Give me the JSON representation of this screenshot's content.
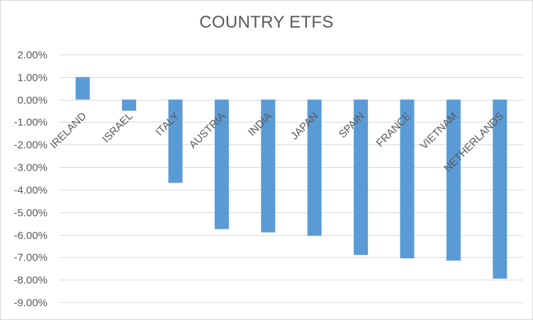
{
  "chart_data": {
    "type": "bar",
    "title": "COUNTRY ETFS",
    "xlabel": "",
    "ylabel": "",
    "ylim": [
      -0.09,
      0.02
    ],
    "yticks": [
      0.02,
      0.01,
      0.0,
      -0.01,
      -0.02,
      -0.03,
      -0.04,
      -0.05,
      -0.06,
      -0.07,
      -0.08,
      -0.09
    ],
    "ytick_labels": [
      "2.00%",
      "1.00%",
      "0.00%",
      "-1.00%",
      "-2.00%",
      "-3.00%",
      "-4.00%",
      "-5.00%",
      "-6.00%",
      "-7.00%",
      "-8.00%",
      "-9.00%"
    ],
    "categories": [
      "IRELAND",
      "ISRAEL",
      "ITALY",
      "AUSTRIA",
      "INDIA",
      "JAPAN",
      "SPAIN",
      "FRANCE",
      "VIETNAM",
      "NETHERLANDS"
    ],
    "values": [
      0.01,
      -0.005,
      -0.037,
      -0.0575,
      -0.059,
      -0.0605,
      -0.069,
      -0.0705,
      -0.0715,
      -0.0795
    ],
    "grid": true,
    "legend": "none",
    "bar_color": "#5b9bd5",
    "grid_color": "#d9d9d9",
    "text_color": "#595959"
  }
}
